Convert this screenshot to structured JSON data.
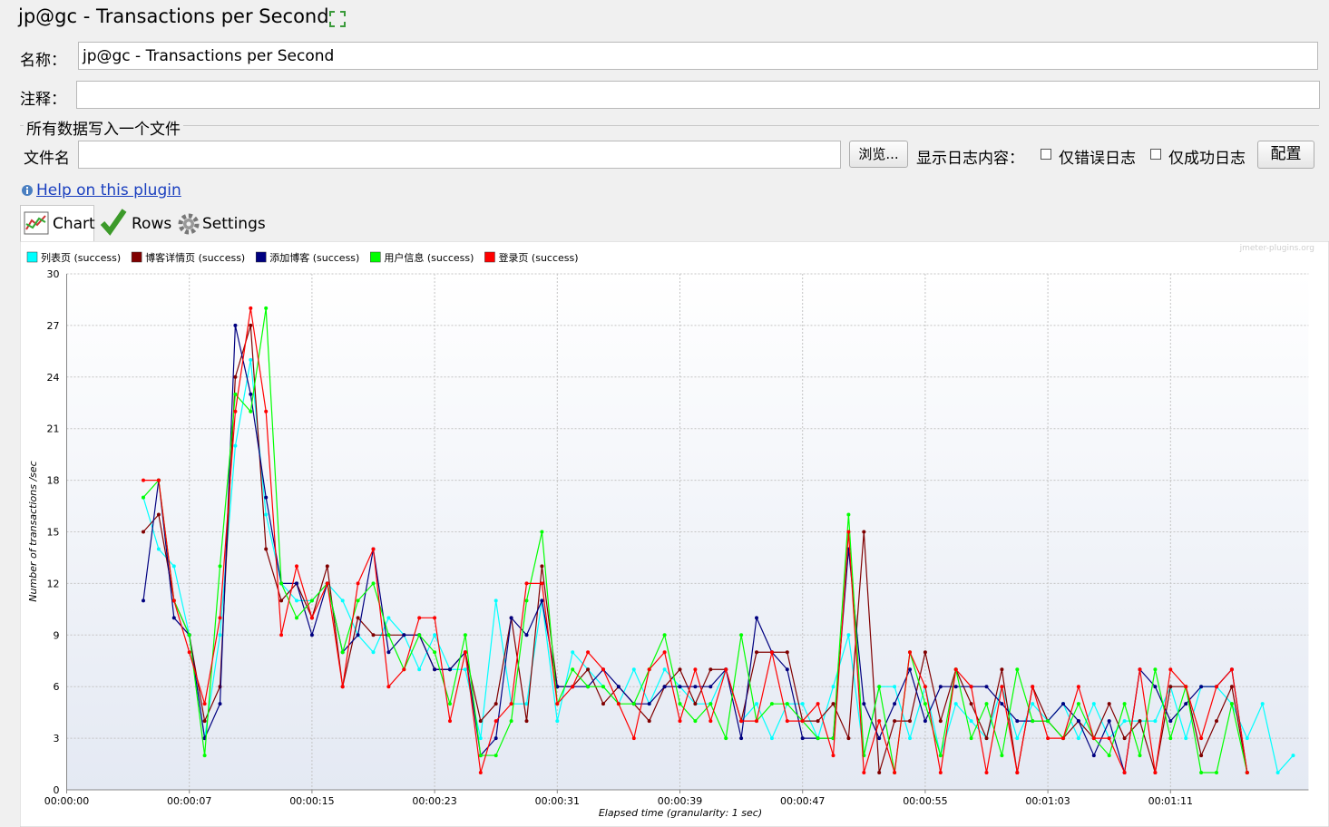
{
  "header": {
    "title": "jp@gc - Transactions per Second"
  },
  "form": {
    "name_label": "名称：",
    "name_value": "jp@gc - Transactions per Second",
    "comment_label": "注释：",
    "file_section": "所有数据写入一个文件",
    "file_label": "文件名",
    "browse_button": "浏览...",
    "log_label": "显示日志内容：",
    "errors_only": "仅错误日志",
    "success_only": "仅成功日志",
    "configure_button": "配置"
  },
  "help_link": "Help on this plugin",
  "tabs": [
    "Chart",
    "Rows",
    "Settings"
  ],
  "chart_data": {
    "type": "line",
    "watermark": "jmeter-plugins.org",
    "x_label": "Elapsed time (granularity: 1 sec)",
    "y_label": "Number of transactions /sec",
    "x": [
      5,
      6,
      7,
      8,
      9,
      10,
      11,
      12,
      13,
      14,
      15,
      16,
      17,
      18,
      19,
      20,
      21,
      22,
      23,
      24,
      25,
      26,
      27,
      28,
      29,
      30,
      31,
      32,
      33,
      34,
      35,
      36,
      37,
      38,
      39,
      40,
      41,
      42,
      43,
      44,
      45,
      46,
      47,
      48,
      49,
      50,
      51,
      52,
      53,
      54,
      55,
      56,
      57,
      58,
      59,
      60,
      61,
      62,
      63,
      64,
      65,
      66,
      67,
      68,
      69,
      70,
      71,
      72,
      73,
      74,
      75,
      76,
      77,
      78,
      79,
      80
    ],
    "xlim": [
      0,
      81
    ],
    "xticks": [
      {
        "value": 0,
        "label": "00:00:00"
      },
      {
        "value": 8,
        "label": "00:00:07"
      },
      {
        "value": 16,
        "label": "00:00:15"
      },
      {
        "value": 24,
        "label": "00:00:23"
      },
      {
        "value": 32,
        "label": "00:00:31"
      },
      {
        "value": 40,
        "label": "00:00:39"
      },
      {
        "value": 48,
        "label": "00:00:47"
      },
      {
        "value": 56,
        "label": "00:00:55"
      },
      {
        "value": 64,
        "label": "00:01:03"
      },
      {
        "value": 72,
        "label": "00:01:11"
      }
    ],
    "ylim": [
      0,
      30
    ],
    "yticks": [
      0,
      3,
      6,
      9,
      12,
      15,
      18,
      21,
      24,
      27,
      30
    ],
    "grid": true,
    "legend": "top-left",
    "series": [
      {
        "name": "列表页 (success)",
        "color": "#00ffff",
        "values": [
          17,
          14,
          13,
          9,
          3,
          9,
          20,
          25,
          16,
          12,
          11,
          11,
          12,
          11,
          9,
          8,
          10,
          9,
          7,
          9,
          7,
          7,
          3,
          11,
          5,
          5,
          11,
          4,
          8,
          7,
          6,
          5,
          7,
          5,
          7,
          6,
          5,
          5,
          7,
          4,
          5,
          3,
          5,
          5,
          3,
          6,
          9,
          2,
          6,
          6,
          3,
          6,
          2,
          5,
          4,
          3,
          6,
          3,
          5,
          4,
          5,
          3,
          5,
          3,
          4,
          4,
          4,
          6,
          3,
          6,
          6,
          5,
          3,
          5,
          1,
          2
        ]
      },
      {
        "name": "博客详情页 (success)",
        "color": "#800000",
        "values": [
          15,
          16,
          11,
          9,
          4,
          6,
          24,
          27,
          14,
          11,
          12,
          10,
          13,
          6,
          10,
          9,
          9,
          9,
          9,
          7,
          7,
          8,
          4,
          5,
          10,
          4,
          13,
          6,
          6,
          7,
          5,
          6,
          5,
          4,
          6,
          7,
          5,
          7,
          7,
          4,
          8,
          8,
          8,
          4,
          4,
          5,
          3,
          15,
          1,
          4,
          4,
          8,
          4,
          7,
          5,
          3,
          7,
          1,
          6,
          4,
          3,
          4,
          3,
          5,
          3,
          4,
          1,
          6,
          6,
          2,
          4,
          6,
          1,
          null,
          null,
          null
        ]
      },
      {
        "name": "添加博客 (success)",
        "color": "#000080",
        "values": [
          11,
          18,
          10,
          9,
          3,
          5,
          27,
          23,
          17,
          12,
          12,
          9,
          12,
          8,
          9,
          14,
          8,
          9,
          9,
          7,
          7,
          8,
          2,
          3,
          10,
          9,
          11,
          6,
          6,
          6,
          7,
          6,
          5,
          5,
          6,
          6,
          6,
          6,
          7,
          3,
          10,
          8,
          7,
          3,
          3,
          3,
          14,
          5,
          3,
          5,
          7,
          4,
          6,
          6,
          6,
          6,
          5,
          4,
          4,
          4,
          5,
          4,
          2,
          4,
          1,
          7,
          6,
          4,
          5,
          6,
          6,
          7,
          1,
          null,
          null,
          null
        ]
      },
      {
        "name": "用户信息 (success)",
        "color": "#00ff00",
        "values": [
          17,
          18,
          11,
          9,
          2,
          13,
          23,
          22,
          28,
          12,
          10,
          11,
          12,
          8,
          11,
          12,
          9,
          7,
          9,
          8,
          5,
          9,
          2,
          2,
          4,
          11,
          15,
          5,
          7,
          6,
          6,
          5,
          5,
          7,
          9,
          5,
          4,
          5,
          3,
          9,
          4,
          5,
          5,
          4,
          3,
          3,
          16,
          2,
          6,
          1,
          8,
          5,
          2,
          7,
          3,
          5,
          2,
          7,
          4,
          4,
          3,
          5,
          3,
          2,
          5,
          2,
          7,
          3,
          6,
          1,
          1,
          5,
          1,
          null,
          null,
          null
        ]
      },
      {
        "name": "登录页 (success)",
        "color": "#ff0000",
        "values": [
          18,
          18,
          11,
          8,
          5,
          10,
          22,
          28,
          22,
          9,
          13,
          10,
          12,
          6,
          12,
          14,
          6,
          7,
          10,
          10,
          4,
          8,
          1,
          4,
          5,
          12,
          12,
          5,
          6,
          8,
          7,
          5,
          3,
          7,
          8,
          4,
          7,
          4,
          7,
          4,
          4,
          8,
          4,
          4,
          5,
          2,
          15,
          1,
          4,
          1,
          8,
          6,
          1,
          7,
          6,
          1,
          6,
          1,
          6,
          3,
          3,
          6,
          3,
          3,
          1,
          7,
          1,
          7,
          6,
          3,
          6,
          7,
          1,
          null,
          null,
          null
        ]
      }
    ]
  }
}
